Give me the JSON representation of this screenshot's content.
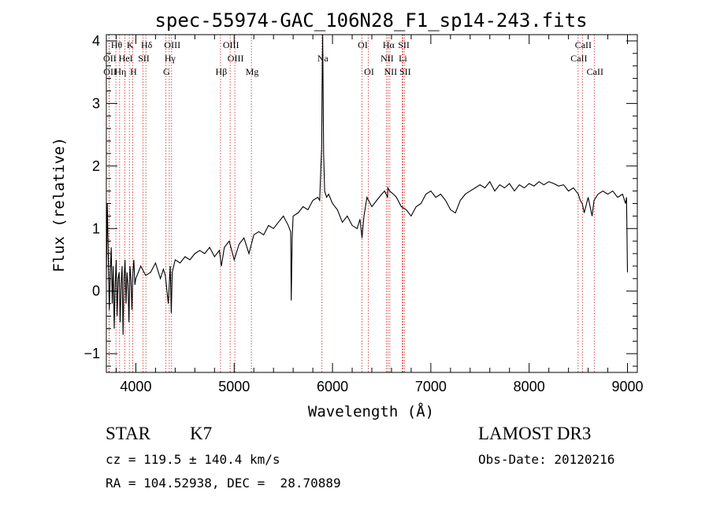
{
  "chart_data": {
    "type": "line",
    "title": "spec-55974-GAC_106N28_F1_sp14-243.fits",
    "xlabel": "Wavelength (Å)",
    "ylabel": "Flux (relative)",
    "xlim": [
      3700,
      9100
    ],
    "ylim": [
      -1.3,
      4.1
    ],
    "xticks": [
      4000,
      5000,
      6000,
      7000,
      8000,
      9000
    ],
    "yticks": [
      -1,
      0,
      1,
      2,
      3,
      4
    ],
    "grid": false,
    "series": [
      {
        "name": "spectrum",
        "x": [
          3700,
          3710,
          3720,
          3730,
          3740,
          3750,
          3760,
          3770,
          3780,
          3790,
          3800,
          3810,
          3820,
          3830,
          3840,
          3850,
          3860,
          3870,
          3880,
          3890,
          3900,
          3910,
          3920,
          3930,
          3940,
          3950,
          3960,
          3970,
          3980,
          3990,
          4000,
          4050,
          4100,
          4150,
          4200,
          4250,
          4280,
          4300,
          4330,
          4350,
          4360,
          4370,
          4400,
          4450,
          4500,
          4550,
          4600,
          4650,
          4700,
          4750,
          4800,
          4850,
          4870,
          4900,
          4950,
          5000,
          5050,
          5100,
          5150,
          5200,
          5250,
          5300,
          5350,
          5400,
          5450,
          5500,
          5550,
          5575,
          5580,
          5590,
          5600,
          5650,
          5700,
          5750,
          5800,
          5850,
          5870,
          5880,
          5890,
          5895,
          5900,
          5910,
          5920,
          5940,
          5960,
          6000,
          6050,
          6100,
          6150,
          6200,
          6250,
          6280,
          6300,
          6320,
          6350,
          6400,
          6450,
          6500,
          6530,
          6560,
          6563,
          6580,
          6620,
          6650,
          6700,
          6750,
          6800,
          6850,
          6900,
          6950,
          7000,
          7050,
          7100,
          7150,
          7200,
          7250,
          7300,
          7350,
          7400,
          7450,
          7500,
          7550,
          7600,
          7650,
          7700,
          7750,
          7800,
          7850,
          7900,
          7950,
          8000,
          8050,
          8100,
          8150,
          8200,
          8250,
          8300,
          8350,
          8400,
          8450,
          8500,
          8520,
          8540,
          8560,
          8600,
          8640,
          8660,
          8700,
          8750,
          8800,
          8850,
          8900,
          8950,
          8980,
          8990,
          9000
        ],
        "values": [
          0.2,
          1.4,
          0.5,
          -0.3,
          0.3,
          0.7,
          -0.2,
          0.4,
          -0.6,
          0.1,
          0.5,
          -0.4,
          0.2,
          0.3,
          -0.5,
          0.1,
          0.4,
          -0.7,
          0.2,
          0.5,
          -0.2,
          0.3,
          0.1,
          -0.5,
          0.4,
          0.2,
          -0.3,
          0.3,
          0.5,
          0.1,
          0.2,
          0.4,
          0.25,
          0.3,
          0.45,
          0.2,
          0.35,
          0.25,
          -0.2,
          0.4,
          -0.35,
          0.3,
          0.5,
          0.45,
          0.55,
          0.5,
          0.6,
          0.65,
          0.6,
          0.7,
          0.55,
          0.65,
          0.4,
          0.7,
          0.8,
          0.5,
          0.75,
          0.85,
          0.6,
          0.9,
          0.95,
          0.9,
          1.05,
          1.0,
          1.1,
          1.2,
          1.05,
          0.95,
          -0.15,
          0.85,
          1.2,
          1.25,
          1.35,
          1.3,
          1.45,
          1.5,
          1.45,
          1.9,
          2.3,
          3.4,
          4.1,
          2.2,
          1.6,
          1.5,
          1.55,
          1.4,
          1.3,
          1.1,
          1.2,
          1.05,
          1.0,
          1.15,
          0.85,
          1.2,
          1.5,
          1.35,
          1.45,
          1.55,
          1.6,
          1.5,
          1.65,
          1.6,
          1.55,
          1.5,
          1.35,
          1.3,
          1.2,
          1.35,
          1.4,
          1.55,
          1.6,
          1.5,
          1.55,
          1.45,
          1.3,
          1.25,
          1.45,
          1.55,
          1.6,
          1.65,
          1.7,
          1.65,
          1.75,
          1.6,
          1.7,
          1.65,
          1.72,
          1.6,
          1.7,
          1.65,
          1.72,
          1.68,
          1.75,
          1.7,
          1.75,
          1.72,
          1.68,
          1.7,
          1.6,
          1.65,
          1.55,
          1.45,
          1.4,
          1.25,
          1.5,
          1.2,
          1.45,
          1.55,
          1.6,
          1.55,
          1.6,
          1.5,
          1.55,
          1.4,
          1.5,
          0.3
        ]
      }
    ],
    "lines_top": [
      {
        "label": "Hθ",
        "x": 3797
      },
      {
        "label": "K",
        "x": 3934
      },
      {
        "label": "Hδ",
        "x": 4102
      },
      {
        "label": "OIII",
        "x": 4363
      },
      {
        "label": "OIII",
        "x": 4959
      },
      {
        "label": "OI",
        "x": 6300
      },
      {
        "label": "Hα",
        "x": 6563
      },
      {
        "label": "SII",
        "x": 6717
      },
      {
        "label": "CaII",
        "x": 8542
      }
    ],
    "lines_mid": [
      {
        "label": "OII",
        "x": 3727
      },
      {
        "label": "HeI",
        "x": 3889
      },
      {
        "label": "SII",
        "x": 4072
      },
      {
        "label": "Hγ",
        "x": 4340
      },
      {
        "label": "OIII",
        "x": 5007
      },
      {
        "label": "Na",
        "x": 5893
      },
      {
        "label": "NII",
        "x": 6548
      },
      {
        "label": "Li",
        "x": 6708
      },
      {
        "label": "CaII",
        "x": 8498
      }
    ],
    "lines_bot": [
      {
        "label": "OII",
        "x": 3729
      },
      {
        "label": "Hη",
        "x": 3835
      },
      {
        "label": "H",
        "x": 3968
      },
      {
        "label": "G",
        "x": 4304
      },
      {
        "label": "Hβ",
        "x": 4861
      },
      {
        "label": "Mg",
        "x": 5175
      },
      {
        "label": "OI",
        "x": 6364
      },
      {
        "label": "NII",
        "x": 6583
      },
      {
        "label": "SII",
        "x": 6731
      },
      {
        "label": "CaII",
        "x": 8662
      }
    ],
    "line_color": "#cc2222"
  },
  "info": {
    "class": "STAR",
    "subclass": "K7",
    "survey": "LAMOST DR3",
    "cz": "cz = 119.5 ± 140.4 km/s",
    "obs_date": "Obs-Date: 20120216",
    "radec": "RA = 104.52938, DEC =  28.70889"
  }
}
